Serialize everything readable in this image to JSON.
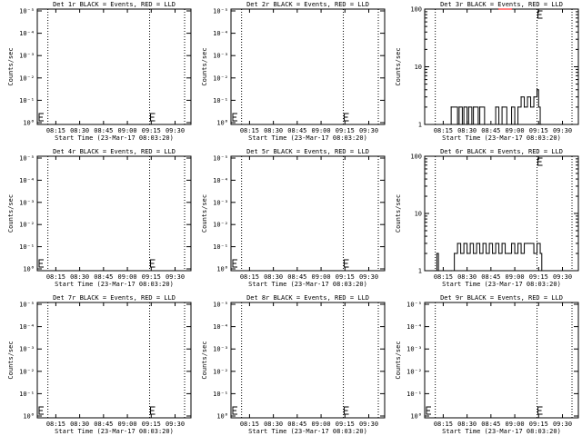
{
  "chart_data": [
    {
      "type": "line",
      "title": "Det 1r BLACK = Events, RED = LLD",
      "xlabel": "Start Time (23-Mar-17 08:03:20)",
      "ylabel": "Counts/sec",
      "scale": "log",
      "yticks": [
        "10°",
        "10⁻¹",
        "10⁻²",
        "10⁻³",
        "10⁻⁴",
        "10⁻⁵"
      ],
      "xticks": [
        "08:15",
        "08:30",
        "08:45",
        "09:00",
        "09:15",
        "09:30"
      ],
      "series": []
    },
    {
      "type": "line",
      "title": "Det 2r BLACK = Events, RED = LLD",
      "xlabel": "Start Time (23-Mar-17 08:03:20)",
      "ylabel": "Counts/sec",
      "scale": "log",
      "yticks": [
        "10°",
        "10⁻¹",
        "10⁻²",
        "10⁻³",
        "10⁻⁴",
        "10⁻⁵"
      ],
      "xticks": [
        "08:15",
        "08:30",
        "08:45",
        "09:00",
        "09:15",
        "09:30"
      ],
      "series": []
    },
    {
      "type": "line",
      "title": "Det 3r BLACK = Events, RED = LLD",
      "xlabel": "Start Time (23-Mar-17 08:03:20)",
      "ylabel": "Counts/sec",
      "scale": "log",
      "yticks": [
        "1",
        "10",
        "100"
      ],
      "ylim": [
        1,
        100
      ],
      "xticks": [
        "08:15",
        "08:30",
        "08:45",
        "09:00",
        "09:15",
        "09:30"
      ],
      "series": [
        {
          "color": "#000000",
          "x": [
            "08:18",
            "08:20",
            "08:24",
            "08:25",
            "08:27",
            "08:28",
            "08:30",
            "08:31",
            "08:33",
            "08:34",
            "08:37",
            "08:38",
            "08:41",
            "08:43",
            "08:46",
            "08:48",
            "08:50",
            "08:52",
            "08:55",
            "08:58",
            "09:00",
            "09:02",
            "09:04",
            "09:06",
            "09:08",
            "09:10",
            "09:12",
            "09:14",
            "09:15",
            "09:16",
            "09:17"
          ],
          "y": [
            1,
            2,
            1,
            2,
            1,
            2,
            1,
            2,
            1,
            2,
            1,
            2,
            1,
            1,
            1,
            2,
            1,
            2,
            1,
            2,
            1,
            2,
            3,
            2,
            3,
            2,
            3,
            4,
            2,
            1,
            1
          ]
        },
        {
          "color": "#ff0000",
          "x": [
            "08:50",
            "08:58"
          ],
          "y": [
            100,
            100
          ]
        }
      ]
    },
    {
      "type": "line",
      "title": "Det 4r BLACK = Events, RED = LLD",
      "xlabel": "Start Time (23-Mar-17 08:03:20)",
      "ylabel": "Counts/sec",
      "scale": "log",
      "yticks": [
        "10°",
        "10⁻¹",
        "10⁻²",
        "10⁻³",
        "10⁻⁴",
        "10⁻⁵"
      ],
      "xticks": [
        "08:15",
        "08:30",
        "08:45",
        "09:00",
        "09:15",
        "09:30"
      ],
      "series": []
    },
    {
      "type": "line",
      "title": "Det 5r BLACK = Events, RED = LLD",
      "xlabel": "Start Time (23-Mar-17 08:03:20)",
      "ylabel": "Counts/sec",
      "scale": "log",
      "yticks": [
        "10°",
        "10⁻¹",
        "10⁻²",
        "10⁻³",
        "10⁻⁴",
        "10⁻⁵"
      ],
      "xticks": [
        "08:15",
        "08:30",
        "08:45",
        "09:00",
        "09:15",
        "09:30"
      ],
      "series": []
    },
    {
      "type": "line",
      "title": "Det 6r BLACK = Events, RED = LLD",
      "xlabel": "Start Time (23-Mar-17 08:03:20)",
      "ylabel": "Counts/sec",
      "scale": "log",
      "yticks": [
        "1",
        "10",
        "100"
      ],
      "ylim": [
        1,
        100
      ],
      "xticks": [
        "08:15",
        "08:30",
        "08:45",
        "09:00",
        "09:15",
        "09:30"
      ],
      "series": [
        {
          "color": "#000000",
          "x": [
            "08:10",
            "08:11",
            "08:12",
            "08:20",
            "08:22",
            "08:24",
            "08:26",
            "08:28",
            "08:30",
            "08:32",
            "08:34",
            "08:36",
            "08:38",
            "08:40",
            "08:42",
            "08:44",
            "08:46",
            "08:48",
            "08:50",
            "08:52",
            "08:54",
            "08:56",
            "08:58",
            "09:00",
            "09:02",
            "09:04",
            "09:06",
            "09:08",
            "09:10",
            "09:12",
            "09:14",
            "09:16",
            "09:17"
          ],
          "y": [
            1,
            2,
            1,
            1,
            2,
            3,
            2,
            3,
            2,
            3,
            2,
            3,
            2,
            3,
            2,
            3,
            2,
            3,
            2,
            3,
            2,
            2,
            3,
            2,
            3,
            2,
            3,
            3,
            3,
            2,
            3,
            2,
            1
          ]
        }
      ]
    },
    {
      "type": "line",
      "title": "Det 7r BLACK = Events, RED = LLD",
      "xlabel": "Start Time (23-Mar-17 08:03:20)",
      "ylabel": "Counts/sec",
      "scale": "log",
      "yticks": [
        "10°",
        "10⁻¹",
        "10⁻²",
        "10⁻³",
        "10⁻⁴",
        "10⁻⁵"
      ],
      "xticks": [
        "08:15",
        "08:30",
        "08:45",
        "09:00",
        "09:15",
        "09:30"
      ],
      "series": []
    },
    {
      "type": "line",
      "title": "Det 8r BLACK = Events, RED = LLD",
      "xlabel": "Start Time (23-Mar-17 08:03:20)",
      "ylabel": "Counts/sec",
      "scale": "log",
      "yticks": [
        "10°",
        "10⁻¹",
        "10⁻²",
        "10⁻³",
        "10⁻⁴",
        "10⁻⁵"
      ],
      "xticks": [
        "08:15",
        "08:30",
        "08:45",
        "09:00",
        "09:15",
        "09:30"
      ],
      "series": []
    },
    {
      "type": "line",
      "title": "Det 9r BLACK = Events, RED = LLD",
      "xlabel": "Start Time (23-Mar-17 08:03:20)",
      "ylabel": "Counts/sec",
      "scale": "log",
      "yticks": [
        "10°",
        "10⁻¹",
        "10⁻²",
        "10⁻³",
        "10⁻⁴",
        "10⁻⁵"
      ],
      "xticks": [
        "08:15",
        "08:30",
        "08:45",
        "09:00",
        "09:15",
        "09:30"
      ],
      "series": []
    }
  ]
}
